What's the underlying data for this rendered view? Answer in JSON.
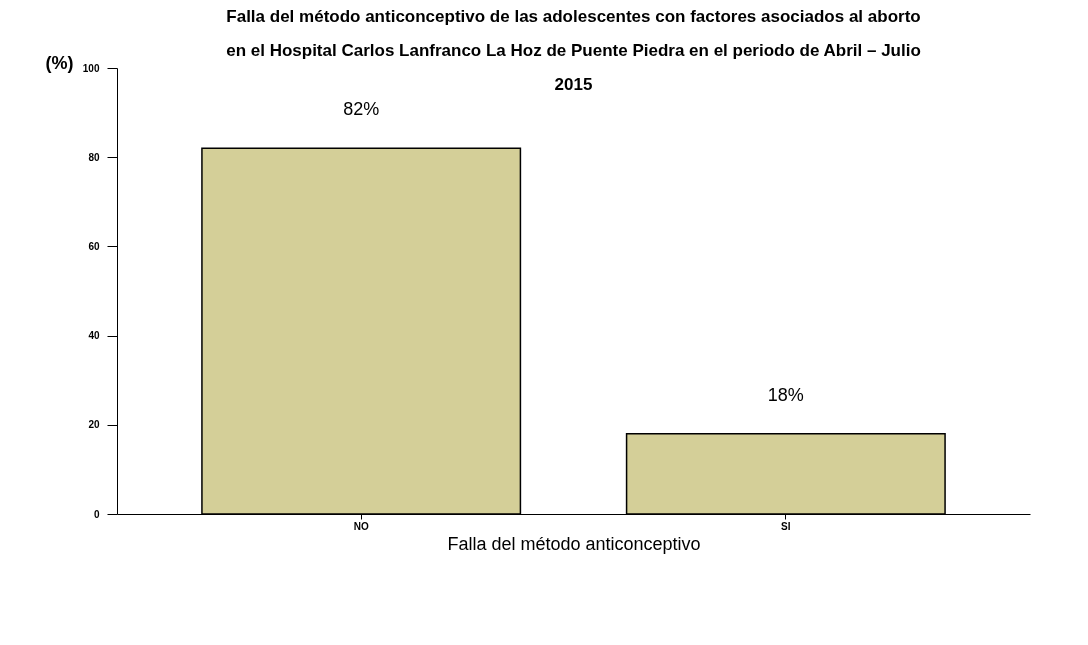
{
  "chart_data": {
    "type": "bar",
    "title": [
      "Falla del método anticonceptivo de las adolescentes con factores asociados al aborto",
      "en el Hospital Carlos Lanfranco La Hoz de Puente Piedra en el periodo de Abril – Julio",
      "2015"
    ],
    "xlabel": "Falla del método anticonceptivo",
    "ylabel": "(%)",
    "categories": [
      "NO",
      "SI"
    ],
    "values": [
      82,
      18
    ],
    "value_labels": [
      "82%",
      "18%"
    ],
    "color": "#d4cf98",
    "ylim": [
      0,
      100
    ],
    "yticks": [
      0,
      20,
      40,
      60,
      80,
      100
    ],
    "grid": false
  }
}
